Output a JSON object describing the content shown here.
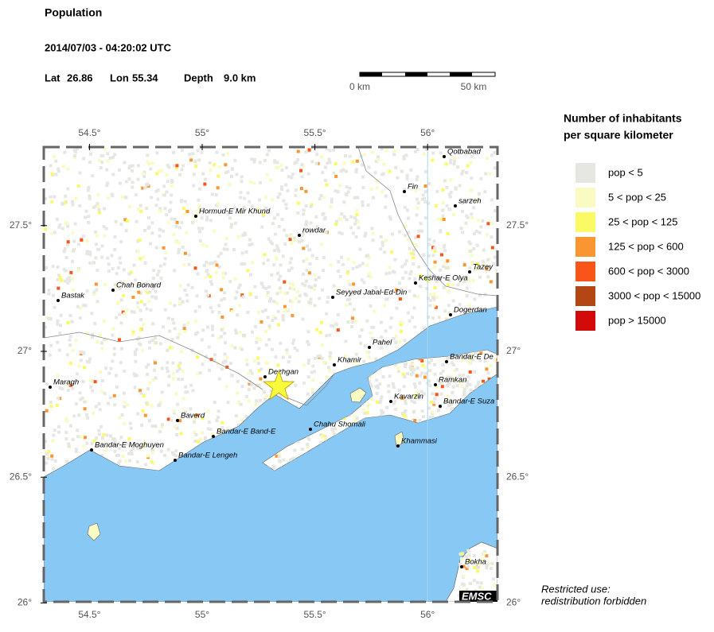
{
  "header": {
    "title": "Population",
    "datetime": "2014/07/03 - 04:20:02 UTC",
    "lat_label": "Lat",
    "lon_label": "Lon",
    "depth_label": "Depth"
  },
  "epicenter": {
    "lat": 26.86,
    "lon": 55.34,
    "depth": "9.0 km"
  },
  "scale": {
    "start": "0 km",
    "end": "50 km"
  },
  "map": {
    "lon_ticks": [
      {
        "value": 54.5,
        "label": "54.5°"
      },
      {
        "value": 55,
        "label": "55°"
      },
      {
        "value": 55.5,
        "label": "55.5°"
      },
      {
        "value": 56,
        "label": "56°"
      }
    ],
    "lat_ticks": [
      {
        "value": 27.5,
        "label": "27.5°"
      },
      {
        "value": 27,
        "label": "27°"
      },
      {
        "value": 26.5,
        "label": "26.5°"
      },
      {
        "value": 26,
        "label": "26°"
      }
    ],
    "places": [
      "Qotbabad",
      "Fin",
      "sarzeh",
      "Hormud-E Mir Khund",
      "rowdar",
      "Tazey",
      "Keshar-E Olya",
      "Chah Bonard",
      "Bastak",
      "Seyyed Jabal-Ed-Din",
      "Dogerdan",
      "Pahel",
      "Bandar-E De",
      "Khamir",
      "Dezhgan",
      "Maragh",
      "Ramkan",
      "Kavarzin",
      "Bandar-E Suza",
      "Baverd",
      "Chahu Shomali",
      "Bandar-E Band-E",
      "Khammasi",
      "Bandar-E Moghuyen",
      "Bandar-E Lengeh",
      "Bokha"
    ],
    "logo": "EMSC"
  },
  "legend": {
    "title": [
      "Number of inhabitants",
      "per square kilometer"
    ],
    "items": [
      {
        "label": "pop < 5",
        "color": "#e6e7e2"
      },
      {
        "label": "5 < pop < 25",
        "color": "#fafac3"
      },
      {
        "label": "25 < pop < 125",
        "color": "#fafa64"
      },
      {
        "label": "125 < pop < 600",
        "color": "#fa9632"
      },
      {
        "label": "600 < pop < 3000",
        "color": "#fa5519"
      },
      {
        "label": "3000 < pop < 15000",
        "color": "#b44614"
      },
      {
        "label": "pop > 15000",
        "color": "#d20a0a"
      }
    ]
  },
  "note": [
    "Restricted use:",
    "redistribution forbidden"
  ]
}
